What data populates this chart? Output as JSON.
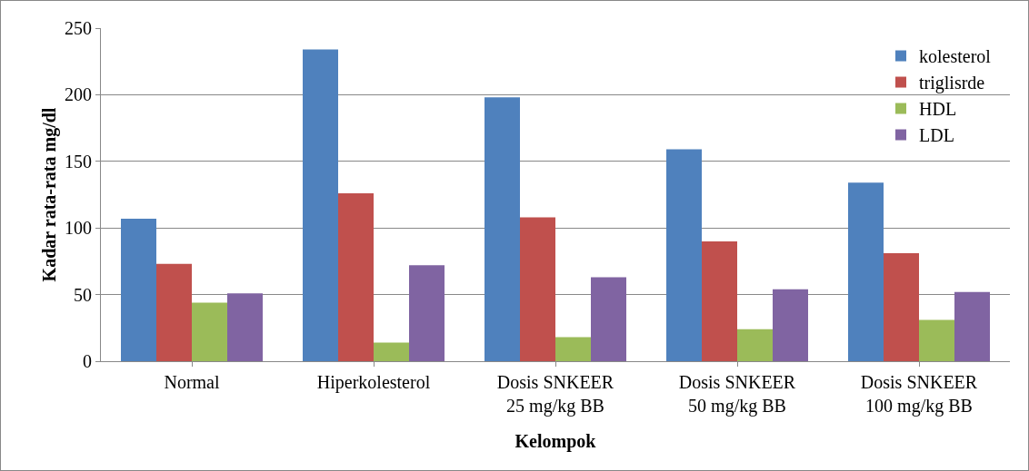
{
  "chart_data": {
    "type": "bar",
    "xlabel": "Kelompok",
    "ylabel": "Kadar rata-rata mg/dl",
    "categories": [
      "Normal",
      "Hiperkolesterol",
      "Dosis SNKEER\n25 mg/kg BB",
      "Dosis SNKEER\n50 mg/kg BB",
      "Dosis SNKEER\n100 mg/kg BB"
    ],
    "series": [
      {
        "name": "kolesterol",
        "color": "#4f81bd",
        "values": [
          107,
          234,
          198,
          159,
          134
        ]
      },
      {
        "name": "triglisrde",
        "color": "#c0504d",
        "values": [
          73,
          126,
          108,
          90,
          81
        ]
      },
      {
        "name": "HDL",
        "color": "#9bbb59",
        "values": [
          44,
          14,
          18,
          24,
          31
        ]
      },
      {
        "name": "LDL",
        "color": "#8064a2",
        "values": [
          51,
          72,
          63,
          54,
          52
        ]
      }
    ],
    "ylim": [
      0,
      250
    ],
    "yticks": [
      0,
      50,
      100,
      150,
      200,
      250
    ],
    "grid": "y",
    "legend": "top right"
  }
}
